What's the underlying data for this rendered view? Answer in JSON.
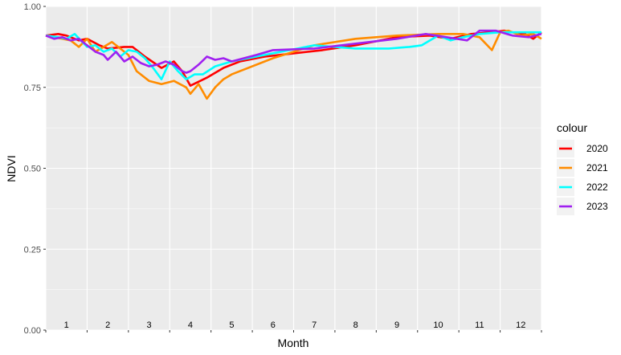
{
  "chart_data": {
    "type": "line",
    "xlabel": "Month",
    "ylabel": "NDVI",
    "ylim": [
      0,
      1
    ],
    "yticks": [
      "0.00",
      "0.25",
      "0.50",
      "0.75",
      "1.00"
    ],
    "ytick_values": [
      0,
      0.25,
      0.5,
      0.75,
      1.0
    ],
    "months": [
      "1",
      "2",
      "3",
      "4",
      "5",
      "6",
      "7",
      "8",
      "9",
      "10",
      "11",
      "12"
    ],
    "xlim": [
      0.5,
      12.5
    ],
    "grid": true,
    "legend_title": "colour",
    "legend_position": "right",
    "series": [
      {
        "name": "2020",
        "color": "#ff0000",
        "x": [
          0.5,
          0.8,
          1.0,
          1.3,
          1.5,
          1.8,
          2.0,
          2.4,
          2.6,
          2.9,
          3.3,
          3.6,
          3.8,
          4.0,
          4.4,
          4.8,
          5.2,
          5.8,
          6.5,
          7.2,
          8.0,
          9.0,
          9.8,
          10.3,
          10.8,
          11.3,
          11.6,
          11.8,
          12.1,
          12.3,
          12.5
        ],
        "y": [
          0.91,
          0.915,
          0.91,
          0.895,
          0.9,
          0.88,
          0.87,
          0.875,
          0.875,
          0.845,
          0.81,
          0.83,
          0.8,
          0.755,
          0.78,
          0.81,
          0.83,
          0.845,
          0.855,
          0.865,
          0.88,
          0.905,
          0.91,
          0.9,
          0.915,
          0.92,
          0.925,
          0.92,
          0.915,
          0.9,
          0.92
        ]
      },
      {
        "name": "2021",
        "color": "#ff8c00",
        "x": [
          0.5,
          0.7,
          0.9,
          1.1,
          1.3,
          1.5,
          1.7,
          1.9,
          2.1,
          2.3,
          2.5,
          2.7,
          3.0,
          3.3,
          3.6,
          3.9,
          4.0,
          4.2,
          4.4,
          4.6,
          4.8,
          5.0,
          6.0,
          7.0,
          8.0,
          9.0,
          10.0,
          10.6,
          11.0,
          11.3,
          11.5,
          11.7,
          12.0,
          12.3,
          12.5
        ],
        "y": [
          0.91,
          0.905,
          0.9,
          0.895,
          0.875,
          0.9,
          0.86,
          0.875,
          0.89,
          0.87,
          0.85,
          0.8,
          0.77,
          0.76,
          0.77,
          0.75,
          0.73,
          0.76,
          0.715,
          0.75,
          0.775,
          0.79,
          0.84,
          0.88,
          0.9,
          0.91,
          0.915,
          0.915,
          0.905,
          0.865,
          0.92,
          0.925,
          0.91,
          0.915,
          0.9
        ]
      },
      {
        "name": "2022",
        "color": "#00ffff",
        "x": [
          0.5,
          0.8,
          1.0,
          1.2,
          1.5,
          1.7,
          1.9,
          2.1,
          2.3,
          2.5,
          2.7,
          2.9,
          3.1,
          3.3,
          3.5,
          3.7,
          3.9,
          4.1,
          4.3,
          4.6,
          5.0,
          6.0,
          7.0,
          8.0,
          8.8,
          9.3,
          9.6,
          10.0,
          10.3,
          10.6,
          11.0,
          11.5,
          12.0,
          12.5
        ],
        "y": [
          0.91,
          0.905,
          0.9,
          0.915,
          0.875,
          0.88,
          0.86,
          0.87,
          0.845,
          0.865,
          0.86,
          0.84,
          0.81,
          0.775,
          0.83,
          0.8,
          0.775,
          0.79,
          0.79,
          0.815,
          0.83,
          0.855,
          0.88,
          0.87,
          0.87,
          0.875,
          0.88,
          0.91,
          0.895,
          0.905,
          0.915,
          0.92,
          0.92,
          0.92
        ]
      },
      {
        "name": "2023",
        "color": "#a020f0",
        "x": [
          0.5,
          0.7,
          0.9,
          1.1,
          1.3,
          1.5,
          1.7,
          1.9,
          2.0,
          2.2,
          2.4,
          2.6,
          2.8,
          3.0,
          3.2,
          3.4,
          3.6,
          3.8,
          3.9,
          4.0,
          4.2,
          4.4,
          4.6,
          4.8,
          5.0,
          5.6,
          6.0,
          7.0,
          8.0,
          9.0,
          9.7,
          10.2,
          10.7,
          11.0,
          11.4,
          11.8,
          12.2,
          12.5
        ],
        "y": [
          0.91,
          0.9,
          0.905,
          0.895,
          0.9,
          0.88,
          0.86,
          0.85,
          0.835,
          0.86,
          0.83,
          0.845,
          0.825,
          0.815,
          0.82,
          0.83,
          0.82,
          0.8,
          0.795,
          0.8,
          0.82,
          0.845,
          0.835,
          0.84,
          0.83,
          0.85,
          0.865,
          0.87,
          0.885,
          0.9,
          0.915,
          0.905,
          0.895,
          0.925,
          0.925,
          0.91,
          0.905,
          0.915
        ]
      }
    ]
  }
}
